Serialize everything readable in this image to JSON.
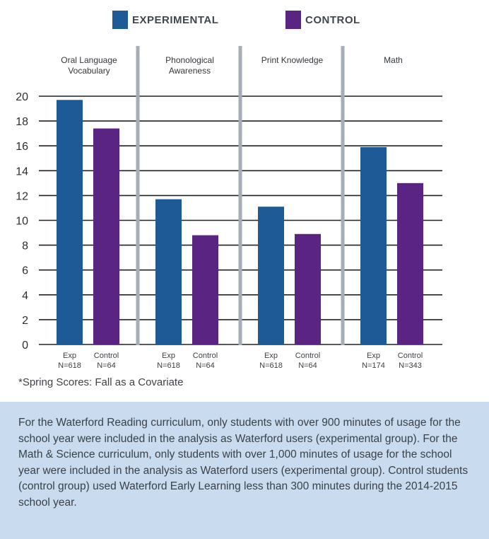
{
  "legend": [
    {
      "label": "EXPERIMENTAL",
      "color": "#1d5a96"
    },
    {
      "label": "CONTROL",
      "color": "#5a2482"
    }
  ],
  "chart_data": {
    "type": "bar",
    "ylim": [
      0,
      20
    ],
    "yticks": [
      0,
      2,
      4,
      6,
      8,
      10,
      12,
      14,
      16,
      18,
      20
    ],
    "grid": true,
    "groups": [
      {
        "title": [
          "Oral Language",
          "Vocabulary"
        ],
        "bars": [
          {
            "series": "Exp",
            "label": [
              "Exp",
              "N=618"
            ],
            "value": 19.7
          },
          {
            "series": "Control",
            "label": [
              "Control",
              "N=64"
            ],
            "value": 17.4
          }
        ]
      },
      {
        "title": [
          "Phonological",
          "Awareness"
        ],
        "bars": [
          {
            "series": "Exp",
            "label": [
              "Exp",
              "N=618"
            ],
            "value": 11.7
          },
          {
            "series": "Control",
            "label": [
              "Control",
              "N=64"
            ],
            "value": 8.8
          }
        ]
      },
      {
        "title": [
          "Print Knowledge"
        ],
        "bars": [
          {
            "series": "Exp",
            "label": [
              "Exp",
              "N=618"
            ],
            "value": 11.1
          },
          {
            "series": "Control",
            "label": [
              "Control",
              "N=64"
            ],
            "value": 8.9
          }
        ]
      },
      {
        "title": [
          "Math"
        ],
        "bars": [
          {
            "series": "Exp",
            "label": [
              "Exp",
              "N=174"
            ],
            "value": 15.9
          },
          {
            "series": "Control",
            "label": [
              "Control",
              "N=343"
            ],
            "value": 13.0
          }
        ]
      }
    ]
  },
  "footnote": "*Spring Scores: Fall as a Covariate",
  "note": "For the Waterford Reading curriculum, only students with over 900 minutes of usage for the school year were included in the analysis as Waterford users (experimental group). For the Math & Science curriculum, only students with over 1,000 minutes of usage for the school year were included in the analysis as Waterford users (experimental group). Control students (control group) used Waterford Early Learning less than 300 minutes during the 2014-2015 school year."
}
